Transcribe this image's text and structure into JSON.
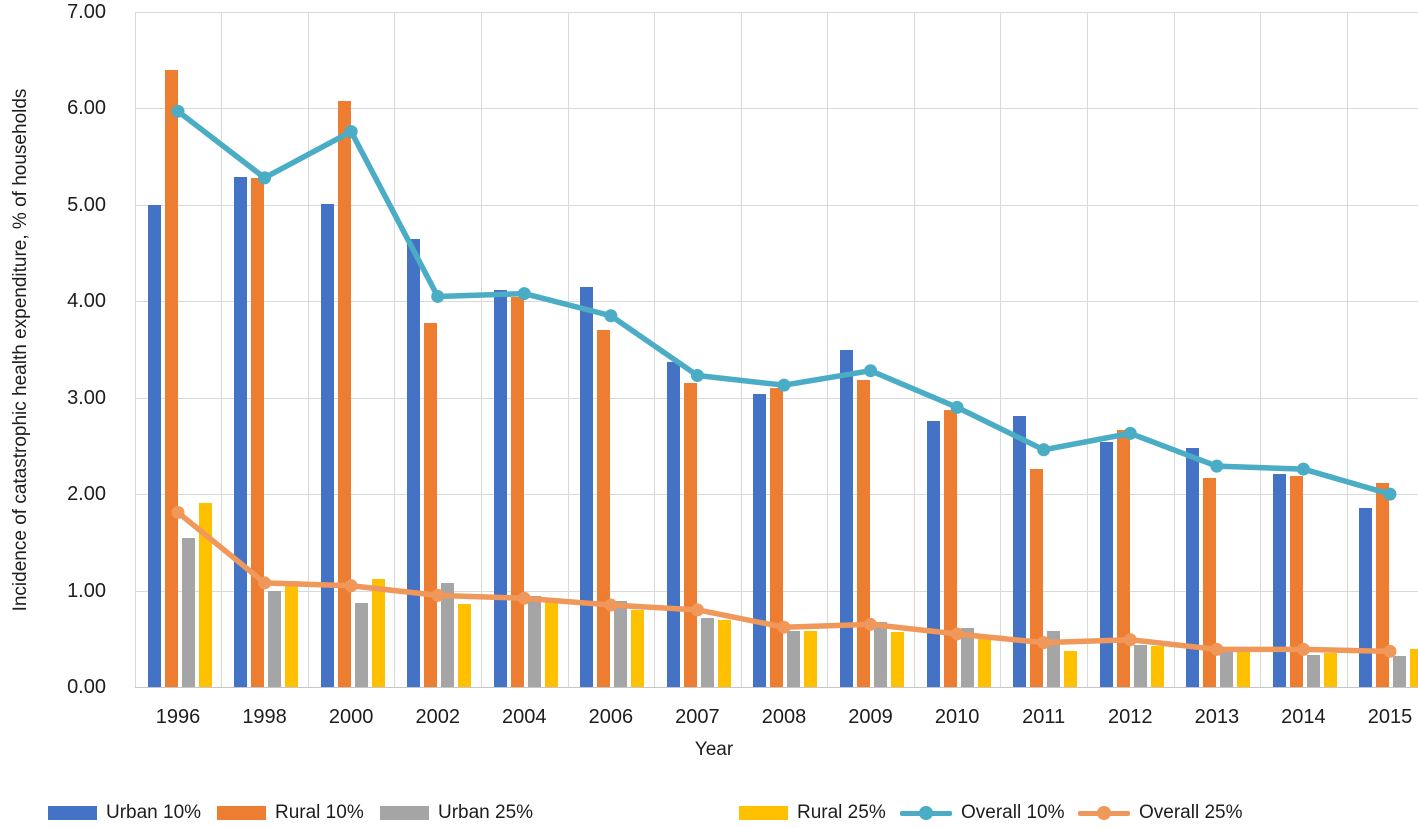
{
  "chart_data": {
    "type": "bar+line",
    "title": "",
    "xlabel": "Year",
    "ylabel": "Incidence of catastrophic health expenditure, % of households",
    "ylim": [
      0,
      7
    ],
    "yticks": [
      "0.00",
      "1.00",
      "2.00",
      "3.00",
      "4.00",
      "5.00",
      "6.00",
      "7.00"
    ],
    "grid": {
      "horizontal": true,
      "vertical": true
    },
    "legend_position": "bottom",
    "categories": [
      "1996",
      "1998",
      "2000",
      "2002",
      "2004",
      "2006",
      "2007",
      "2008",
      "2009",
      "2010",
      "2011",
      "2012",
      "2013",
      "2014",
      "2015"
    ],
    "bar_series": [
      {
        "name": "Urban 10%",
        "color": "#4472C4",
        "values": [
          5.0,
          5.29,
          5.01,
          4.65,
          4.12,
          4.15,
          3.37,
          3.04,
          3.49,
          2.76,
          2.81,
          2.54,
          2.48,
          2.21,
          1.86
        ]
      },
      {
        "name": "Rural 10%",
        "color": "#ED7D31",
        "values": [
          6.4,
          5.28,
          6.08,
          3.77,
          4.04,
          3.7,
          3.15,
          3.1,
          3.18,
          2.87,
          2.26,
          2.66,
          2.17,
          2.19,
          2.12
        ]
      },
      {
        "name": "Urban 25%",
        "color": "#A5A5A5",
        "values": [
          1.54,
          1.0,
          0.87,
          1.08,
          0.94,
          0.89,
          0.72,
          0.58,
          0.67,
          0.61,
          0.58,
          0.44,
          0.37,
          0.33,
          0.32
        ]
      },
      {
        "name": "Rural 25%",
        "color": "#FFC000",
        "values": [
          1.91,
          1.1,
          1.12,
          0.86,
          0.88,
          0.8,
          0.69,
          0.58,
          0.57,
          0.51,
          0.37,
          0.43,
          0.36,
          0.35,
          0.39
        ]
      }
    ],
    "line_series": [
      {
        "name": "Overall 10%",
        "color": "#4AACC5",
        "values": [
          5.97,
          5.28,
          5.76,
          4.05,
          4.08,
          3.85,
          3.23,
          3.13,
          3.28,
          2.9,
          2.46,
          2.63,
          2.29,
          2.26,
          2.0
        ]
      },
      {
        "name": "Overall 25%",
        "color": "#F0975A",
        "values": [
          1.81,
          1.08,
          1.05,
          0.95,
          0.92,
          0.85,
          0.8,
          0.62,
          0.65,
          0.55,
          0.46,
          0.49,
          0.39,
          0.39,
          0.37
        ]
      }
    ]
  }
}
